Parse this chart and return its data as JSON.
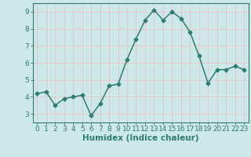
{
  "x": [
    0,
    1,
    2,
    3,
    4,
    5,
    6,
    7,
    8,
    9,
    10,
    11,
    12,
    13,
    14,
    15,
    16,
    17,
    18,
    19,
    20,
    21,
    22,
    23
  ],
  "y": [
    4.2,
    4.3,
    3.5,
    3.9,
    4.0,
    4.1,
    2.9,
    3.6,
    4.65,
    4.75,
    6.2,
    7.4,
    8.5,
    9.1,
    8.5,
    9.0,
    8.6,
    7.8,
    6.4,
    4.8,
    5.6,
    5.6,
    5.8,
    5.6
  ],
  "line_color": "#2e7d6e",
  "marker": "D",
  "marker_size": 2.5,
  "bg_color": "#cce8e8",
  "grid_color": "#e8c8c8",
  "xlabel": "Humidex (Indice chaleur)",
  "ylabel": "",
  "xlim": [
    -0.5,
    23.5
  ],
  "ylim": [
    2.5,
    9.5
  ],
  "yticks": [
    3,
    4,
    5,
    6,
    7,
    8,
    9
  ],
  "xticks": [
    0,
    1,
    2,
    3,
    4,
    5,
    6,
    7,
    8,
    9,
    10,
    11,
    12,
    13,
    14,
    15,
    16,
    17,
    18,
    19,
    20,
    21,
    22,
    23
  ],
  "xlabel_fontsize": 7.5,
  "tick_fontsize": 6.5,
  "line_width": 1.1,
  "tick_color": "#2e7d6e",
  "spine_color": "#2e7d6e"
}
